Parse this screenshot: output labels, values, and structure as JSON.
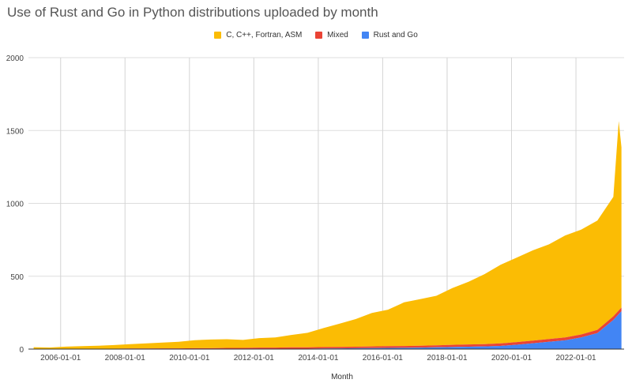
{
  "chart_data": {
    "type": "area",
    "stacked": true,
    "title": "Use of Rust and Go in Python distributions uploaded by month",
    "xlabel": "Month",
    "ylabel": "",
    "ylim": [
      0,
      2000
    ],
    "yticks": [
      0,
      500,
      1000,
      1500,
      2000
    ],
    "xticks": [
      "2006-01-01",
      "2008-01-01",
      "2010-01-01",
      "2012-01-01",
      "2014-01-01",
      "2016-01-01",
      "2018-01-01",
      "2020-01-01",
      "2022-01-01"
    ],
    "grid": true,
    "legend_position": "top",
    "x": [
      "2005-03-01",
      "2005-09-01",
      "2006-03-01",
      "2006-09-01",
      "2007-03-01",
      "2007-09-01",
      "2008-03-01",
      "2008-09-01",
      "2009-03-01",
      "2009-09-01",
      "2010-03-01",
      "2010-09-01",
      "2011-03-01",
      "2011-09-01",
      "2012-03-01",
      "2012-09-01",
      "2013-03-01",
      "2013-09-01",
      "2014-03-01",
      "2014-09-01",
      "2015-03-01",
      "2015-09-01",
      "2016-03-01",
      "2016-09-01",
      "2017-03-01",
      "2017-09-01",
      "2018-03-01",
      "2018-09-01",
      "2019-03-01",
      "2019-09-01",
      "2020-03-01",
      "2020-09-01",
      "2021-03-01",
      "2021-09-01",
      "2022-03-01",
      "2022-09-01",
      "2023-03-01",
      "2023-05-01",
      "2023-06-01"
    ],
    "series": [
      {
        "name": "Rust and Go",
        "color": "#4285f4",
        "values": [
          0,
          0,
          0,
          0,
          0,
          0,
          0,
          0,
          0,
          0,
          0,
          0,
          1,
          1,
          2,
          2,
          3,
          3,
          4,
          5,
          6,
          7,
          8,
          9,
          10,
          12,
          14,
          16,
          18,
          22,
          30,
          40,
          50,
          60,
          80,
          110,
          200,
          240,
          260
        ]
      },
      {
        "name": "Mixed",
        "color": "#ea4335",
        "values": [
          1,
          1,
          2,
          2,
          3,
          3,
          4,
          4,
          5,
          5,
          6,
          6,
          7,
          7,
          8,
          8,
          9,
          9,
          10,
          10,
          10,
          11,
          12,
          12,
          13,
          14,
          15,
          16,
          16,
          17,
          18,
          18,
          19,
          20,
          20,
          22,
          25,
          25,
          25
        ]
      },
      {
        "name": "C, C++, Fortran, ASM",
        "color": "#fbbc04",
        "values": [
          12,
          10,
          15,
          18,
          20,
          25,
          30,
          35,
          40,
          45,
          55,
          60,
          60,
          55,
          65,
          70,
          85,
          100,
          130,
          160,
          190,
          230,
          250,
          300,
          320,
          340,
          390,
          430,
          480,
          540,
          580,
          620,
          650,
          700,
          720,
          750,
          820,
          1300,
          1100
        ]
      }
    ]
  }
}
